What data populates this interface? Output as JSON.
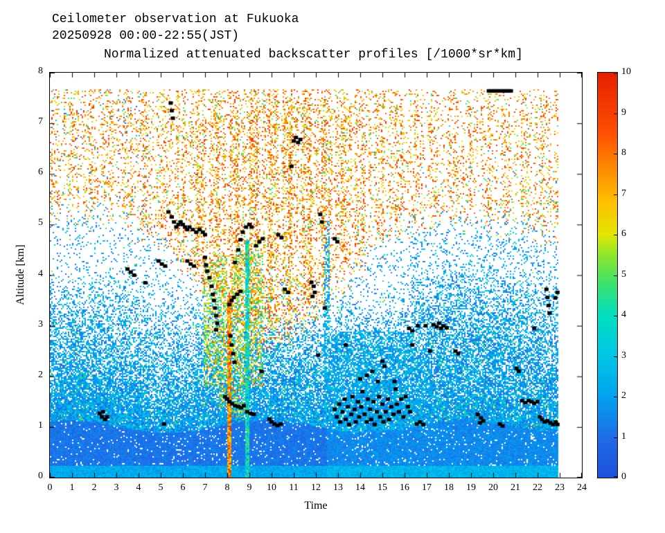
{
  "header": {
    "line1": "Ceilometer observation at Fukuoka",
    "line2": "20250928  00:00-22:55(JST)",
    "line3": "Normalized attenuated backscatter profiles [/1000*sr*km]"
  },
  "chart_data": {
    "type": "heatmap",
    "title": "Normalized attenuated backscatter profiles [/1000*sr*km]",
    "station": "Fukuoka",
    "date": "20250928",
    "time_range_jst": "00:00-22:55",
    "xlabel": "Time",
    "ylabel": "Altitude [km]",
    "xlim": [
      0,
      24
    ],
    "ylim": [
      0,
      8
    ],
    "xticks": [
      0,
      1,
      2,
      3,
      4,
      5,
      6,
      7,
      8,
      9,
      10,
      11,
      12,
      13,
      14,
      15,
      16,
      17,
      18,
      19,
      20,
      21,
      22,
      23,
      24
    ],
    "yticks": [
      0,
      1,
      2,
      3,
      4,
      5,
      6,
      7,
      8
    ],
    "t_end": 22.917,
    "data_top_km": 7.68,
    "grid": false,
    "colorbar": {
      "lim": [
        0,
        10
      ],
      "ticks": [
        0,
        1,
        2,
        3,
        4,
        5,
        6,
        7,
        8,
        9,
        10
      ],
      "units": "/1000*sr*km",
      "stops": [
        [
          0,
          "#1e50dc"
        ],
        [
          0.1,
          "#1f6ce8"
        ],
        [
          0.2,
          "#00a2f0"
        ],
        [
          0.3,
          "#00c6e6"
        ],
        [
          0.4,
          "#00dfc0"
        ],
        [
          0.48,
          "#3ce26a"
        ],
        [
          0.55,
          "#8fe62a"
        ],
        [
          0.6,
          "#e2e600"
        ],
        [
          0.68,
          "#ffc000"
        ],
        [
          0.76,
          "#ff8c00"
        ],
        [
          0.85,
          "#ff5000"
        ],
        [
          1,
          "#e61e00"
        ]
      ]
    },
    "noise_model": {
      "ground_layer_top_km": 1.05,
      "surface_bright_band_top_km": 0.25,
      "daytime_noise_center_hour": 10,
      "orange_noise_base_altitude_night_km": 5.3,
      "orange_noise_base_altitude_midday_km": 2.8,
      "evening_cyan_band_center_km": 3.6
    },
    "streaks": [
      {
        "t0": 6.95,
        "t1": 7.6,
        "top": 4.3,
        "bot": 1.8,
        "type": "virga"
      },
      {
        "t0": 7.6,
        "t1": 8.02,
        "top": 4.4,
        "bot": 1.4,
        "type": "virga"
      },
      {
        "t0": 8.02,
        "t1": 8.17,
        "top": 3.6,
        "bot": 0,
        "type": "intense"
      },
      {
        "t0": 8.17,
        "t1": 8.8,
        "top": 4.5,
        "bot": 1.2,
        "type": "virga"
      },
      {
        "t0": 8.84,
        "t1": 9.02,
        "top": 4.7,
        "bot": 0,
        "type": "brightcyan"
      },
      {
        "t0": 9.02,
        "t1": 9.6,
        "top": 4.5,
        "bot": 1.8,
        "type": "virga"
      },
      {
        "t0": 12.35,
        "t1": 12.62,
        "top": 5.1,
        "bot": 0,
        "type": "cyan"
      },
      {
        "t0": 12.62,
        "t1": 16.4,
        "top": 2.9,
        "bot": 0,
        "type": "cyan"
      },
      {
        "t0": 16.4,
        "t1": 17.25,
        "top": 2.5,
        "bot": 0,
        "type": "cyanlight"
      }
    ],
    "cloud_base_points": [
      [
        5.45,
        7.4
      ],
      [
        5.5,
        7.25
      ],
      [
        5.55,
        7.1
      ],
      [
        5.35,
        5.25
      ],
      [
        5.5,
        5.15
      ],
      [
        5.6,
        5.05
      ],
      [
        5.7,
        4.95
      ],
      [
        5.8,
        5.0
      ],
      [
        5.9,
        5.05
      ],
      [
        6.0,
        5.0
      ],
      [
        6.1,
        4.95
      ],
      [
        6.2,
        4.9
      ],
      [
        6.3,
        4.95
      ],
      [
        6.45,
        4.9
      ],
      [
        6.6,
        4.85
      ],
      [
        6.75,
        4.9
      ],
      [
        6.9,
        4.85
      ],
      [
        7.0,
        4.8
      ],
      [
        3.5,
        4.12
      ],
      [
        3.65,
        4.06
      ],
      [
        3.8,
        4.0
      ],
      [
        4.3,
        3.85
      ],
      [
        4.9,
        4.28
      ],
      [
        5.05,
        4.22
      ],
      [
        5.2,
        4.18
      ],
      [
        6.2,
        4.28
      ],
      [
        6.35,
        4.22
      ],
      [
        6.5,
        4.18
      ],
      [
        7.0,
        4.35
      ],
      [
        7.05,
        4.2
      ],
      [
        7.1,
        4.08
      ],
      [
        7.2,
        3.95
      ],
      [
        7.3,
        3.78
      ],
      [
        7.35,
        3.62
      ],
      [
        7.4,
        3.5
      ],
      [
        7.45,
        3.35
      ],
      [
        7.5,
        3.2
      ],
      [
        7.55,
        3.05
      ],
      [
        7.5,
        2.92
      ],
      [
        8.1,
        3.42
      ],
      [
        8.2,
        3.5
      ],
      [
        8.3,
        3.56
      ],
      [
        8.45,
        3.62
      ],
      [
        8.6,
        3.68
      ],
      [
        8.35,
        4.25
      ],
      [
        8.5,
        4.5
      ],
      [
        8.6,
        4.7
      ],
      [
        8.7,
        4.85
      ],
      [
        8.85,
        4.95
      ],
      [
        9.0,
        5.0
      ],
      [
        9.1,
        4.95
      ],
      [
        9.3,
        4.58
      ],
      [
        9.45,
        4.66
      ],
      [
        9.6,
        4.72
      ],
      [
        8.15,
        2.8
      ],
      [
        8.2,
        2.62
      ],
      [
        8.27,
        2.45
      ],
      [
        8.33,
        2.28
      ],
      [
        9.55,
        2.1
      ],
      [
        10.3,
        4.8
      ],
      [
        10.45,
        4.74
      ],
      [
        10.6,
        3.72
      ],
      [
        10.75,
        3.66
      ],
      [
        10.9,
        6.15
      ],
      [
        11.0,
        6.65
      ],
      [
        11.1,
        6.72
      ],
      [
        11.2,
        6.62
      ],
      [
        11.3,
        6.68
      ],
      [
        11.8,
        3.86
      ],
      [
        11.9,
        3.78
      ],
      [
        11.95,
        3.66
      ],
      [
        11.85,
        3.58
      ],
      [
        12.2,
        5.2
      ],
      [
        12.27,
        5.05
      ],
      [
        12.4,
        3.35
      ],
      [
        12.1,
        2.42
      ],
      [
        12.85,
        4.72
      ],
      [
        12.97,
        4.66
      ],
      [
        2.25,
        1.27
      ],
      [
        2.35,
        1.2
      ],
      [
        2.48,
        1.15
      ],
      [
        2.58,
        1.2
      ],
      [
        2.4,
        1.3
      ],
      [
        5.15,
        1.06
      ],
      [
        7.9,
        1.6
      ],
      [
        8.0,
        1.55
      ],
      [
        8.1,
        1.5
      ],
      [
        8.22,
        1.46
      ],
      [
        8.35,
        1.42
      ],
      [
        8.5,
        1.4
      ],
      [
        8.62,
        1.38
      ],
      [
        8.75,
        1.42
      ],
      [
        8.9,
        1.3
      ],
      [
        9.05,
        1.27
      ],
      [
        9.2,
        1.25
      ],
      [
        9.9,
        1.16
      ],
      [
        10.0,
        1.1
      ],
      [
        10.12,
        1.06
      ],
      [
        10.27,
        1.03
      ],
      [
        10.42,
        1.06
      ],
      [
        12.85,
        1.35
      ],
      [
        12.95,
        1.2
      ],
      [
        13.05,
        1.45
      ],
      [
        13.1,
        1.1
      ],
      [
        13.2,
        1.3
      ],
      [
        13.3,
        1.55
      ],
      [
        13.35,
        1.15
      ],
      [
        13.45,
        1.4
      ],
      [
        13.5,
        1.05
      ],
      [
        13.6,
        1.25
      ],
      [
        13.65,
        1.6
      ],
      [
        13.75,
        1.35
      ],
      [
        13.8,
        1.1
      ],
      [
        13.9,
        1.5
      ],
      [
        13.95,
        1.2
      ],
      [
        14.05,
        1.4
      ],
      [
        14.1,
        1.7
      ],
      [
        14.2,
        1.25
      ],
      [
        14.3,
        1.1
      ],
      [
        14.35,
        1.55
      ],
      [
        14.45,
        1.35
      ],
      [
        14.5,
        1.15
      ],
      [
        14.6,
        1.5
      ],
      [
        14.65,
        1.05
      ],
      [
        14.75,
        1.3
      ],
      [
        14.85,
        1.6
      ],
      [
        14.9,
        1.2
      ],
      [
        15.0,
        1.45
      ],
      [
        15.05,
        1.1
      ],
      [
        15.15,
        1.3
      ],
      [
        15.25,
        1.55
      ],
      [
        15.3,
        1.15
      ],
      [
        15.4,
        1.4
      ],
      [
        15.5,
        1.25
      ],
      [
        15.6,
        1.75
      ],
      [
        15.65,
        1.45
      ],
      [
        15.75,
        1.3
      ],
      [
        15.85,
        1.55
      ],
      [
        15.95,
        1.2
      ],
      [
        16.05,
        1.6
      ],
      [
        16.15,
        1.4
      ],
      [
        16.25,
        1.3
      ],
      [
        13.35,
        2.62
      ],
      [
        14.0,
        1.95
      ],
      [
        14.3,
        2.02
      ],
      [
        14.55,
        2.1
      ],
      [
        14.8,
        1.9
      ],
      [
        15.0,
        2.3
      ],
      [
        15.1,
        2.2
      ],
      [
        15.55,
        1.9
      ],
      [
        16.2,
        2.95
      ],
      [
        16.35,
        2.9
      ],
      [
        16.35,
        2.62
      ],
      [
        16.6,
        3.0
      ],
      [
        16.95,
        3.0
      ],
      [
        17.3,
        3.02
      ],
      [
        17.45,
        2.98
      ],
      [
        17.55,
        3.05
      ],
      [
        17.65,
        2.95
      ],
      [
        17.75,
        3.0
      ],
      [
        17.9,
        2.96
      ],
      [
        17.15,
        2.5
      ],
      [
        16.55,
        1.06
      ],
      [
        16.7,
        1.1
      ],
      [
        16.85,
        1.05
      ],
      [
        18.3,
        2.5
      ],
      [
        18.42,
        2.45
      ],
      [
        19.3,
        1.25
      ],
      [
        19.45,
        1.18
      ],
      [
        19.55,
        1.12
      ],
      [
        19.4,
        1.08
      ],
      [
        19.8,
        7.64
      ],
      [
        19.9,
        7.64
      ],
      [
        20.0,
        7.64
      ],
      [
        20.1,
        7.64
      ],
      [
        20.2,
        7.64
      ],
      [
        20.3,
        7.64
      ],
      [
        20.4,
        7.64
      ],
      [
        20.5,
        7.64
      ],
      [
        20.6,
        7.64
      ],
      [
        20.7,
        7.64
      ],
      [
        20.8,
        7.64
      ],
      [
        20.3,
        1.06
      ],
      [
        20.42,
        1.02
      ],
      [
        21.05,
        2.16
      ],
      [
        21.15,
        2.1
      ],
      [
        21.85,
        2.95
      ],
      [
        21.3,
        1.52
      ],
      [
        21.45,
        1.48
      ],
      [
        21.6,
        1.52
      ],
      [
        21.72,
        1.5
      ],
      [
        21.85,
        1.47
      ],
      [
        22.0,
        1.5
      ],
      [
        22.1,
        1.2
      ],
      [
        22.2,
        1.15
      ],
      [
        22.32,
        1.1
      ],
      [
        22.45,
        1.12
      ],
      [
        22.58,
        1.08
      ],
      [
        22.7,
        1.05
      ],
      [
        22.82,
        1.1
      ],
      [
        22.9,
        1.05
      ],
      [
        22.4,
        3.72
      ],
      [
        22.45,
        3.56
      ],
      [
        22.5,
        3.4
      ],
      [
        22.55,
        3.25
      ],
      [
        22.8,
        3.55
      ],
      [
        22.9,
        3.66
      ]
    ]
  }
}
